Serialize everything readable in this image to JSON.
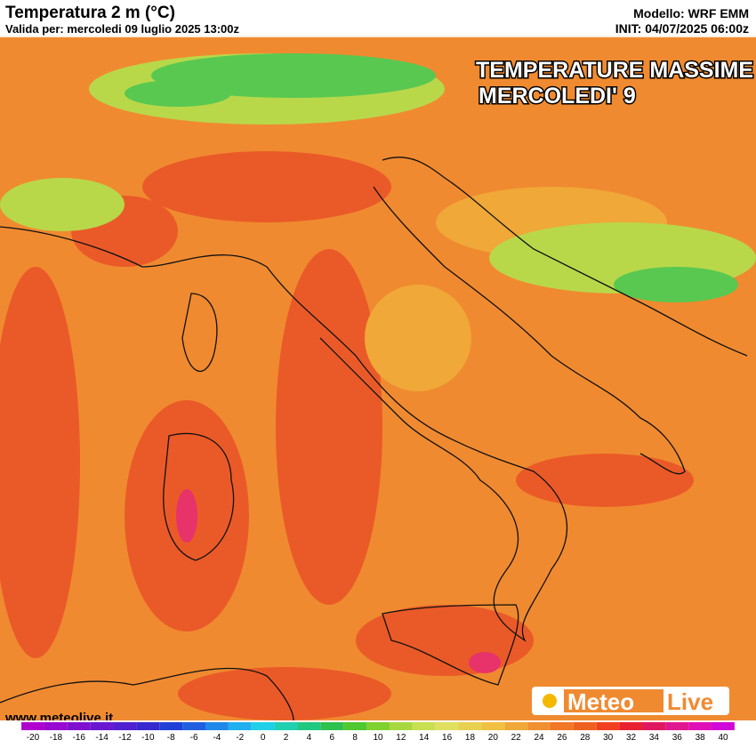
{
  "header": {
    "title": "Temperatura 2 m (°C)",
    "valid": "Valida per: mercoledi 09 luglio 2025 13:00z",
    "model": "Modello: WRF EMM",
    "init": "INIT: 04/07/2025 06:00z"
  },
  "overlay": {
    "line1": "TEMPERATURE MASSIME",
    "line2": "MERCOLEDI' 9"
  },
  "footer": {
    "website": "www.meteolive.it"
  },
  "logo": {
    "part1": "Meteo",
    "part2": "Live"
  },
  "colorbar": {
    "ticks": [
      -20,
      -18,
      -16,
      -14,
      -12,
      -10,
      -8,
      -6,
      -4,
      -2,
      0,
      2,
      4,
      6,
      8,
      10,
      12,
      14,
      16,
      18,
      20,
      22,
      24,
      26,
      28,
      30,
      32,
      34,
      36,
      38,
      40
    ],
    "colors": [
      "#b000d0",
      "#9808d0",
      "#8010d0",
      "#6818d0",
      "#5020d0",
      "#3828d0",
      "#2040d8",
      "#2060e0",
      "#2088e8",
      "#20b0f0",
      "#20d0e8",
      "#20d0b0",
      "#20c880",
      "#30c050",
      "#50c830",
      "#80d030",
      "#a8d840",
      "#c8e050",
      "#e0e060",
      "#e8d050",
      "#f0c040",
      "#f0a838",
      "#f09030",
      "#f07828",
      "#f06020",
      "#f04020",
      "#e82030",
      "#e01860",
      "#e01890",
      "#e010b8",
      "#d008d8"
    ]
  }
}
